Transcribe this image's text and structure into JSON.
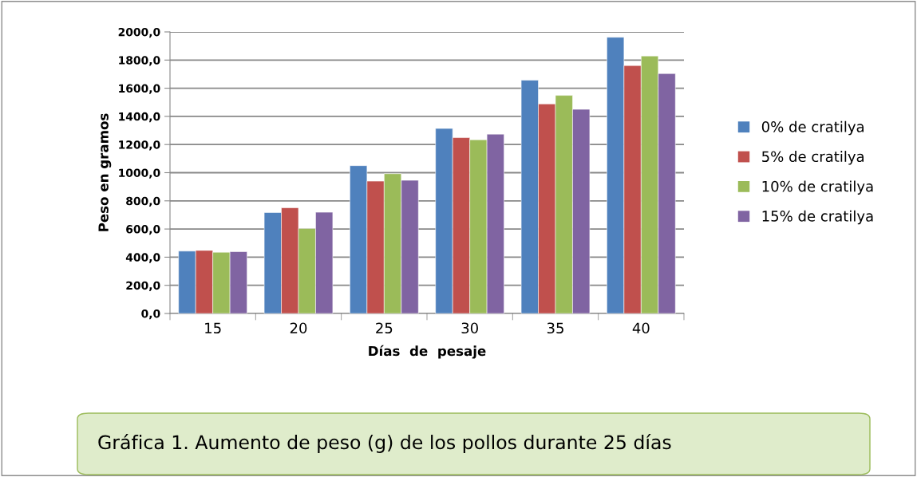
{
  "chart_data": {
    "type": "bar",
    "xlabel": "Días  de  pesaje",
    "ylabel": "Peso en gramos",
    "categories": [
      "15",
      "20",
      "25",
      "30",
      "35",
      "40"
    ],
    "series": [
      {
        "name": "0% de cratilya",
        "color": "#4f81bd",
        "values": [
          443,
          717,
          1050,
          1314,
          1657,
          1962
        ]
      },
      {
        "name": "5% de cratilya",
        "color": "#c0504d",
        "values": [
          448,
          751,
          940,
          1249,
          1488,
          1761
        ]
      },
      {
        "name": "10% de cratilya",
        "color": "#9bbb59",
        "values": [
          435,
          604,
          993,
          1234,
          1549,
          1829
        ]
      },
      {
        "name": "15% de cratilya",
        "color": "#8064a2",
        "values": [
          439,
          719,
          946,
          1274,
          1450,
          1704
        ]
      }
    ],
    "ylim": [
      0,
      2000
    ],
    "yticks": [
      {
        "value": 0,
        "label": "0,0"
      },
      {
        "value": 200,
        "label": "200,0"
      },
      {
        "value": 400,
        "label": "400,0"
      },
      {
        "value": 600,
        "label": "600,0"
      },
      {
        "value": 800,
        "label": "800,0"
      },
      {
        "value": 1000,
        "label": "1000,0"
      },
      {
        "value": 1200,
        "label": "1200,0"
      },
      {
        "value": 1400,
        "label": "1400,0"
      },
      {
        "value": 1600,
        "label": "1600,0"
      },
      {
        "value": 1800,
        "label": "1800,0"
      },
      {
        "value": 2000,
        "label": "2000,0"
      }
    ],
    "grid": "y",
    "legend": "right",
    "annotations": [
      "Gráfica 1. Aumento de peso (g) de los pollos durante 25 días"
    ]
  }
}
